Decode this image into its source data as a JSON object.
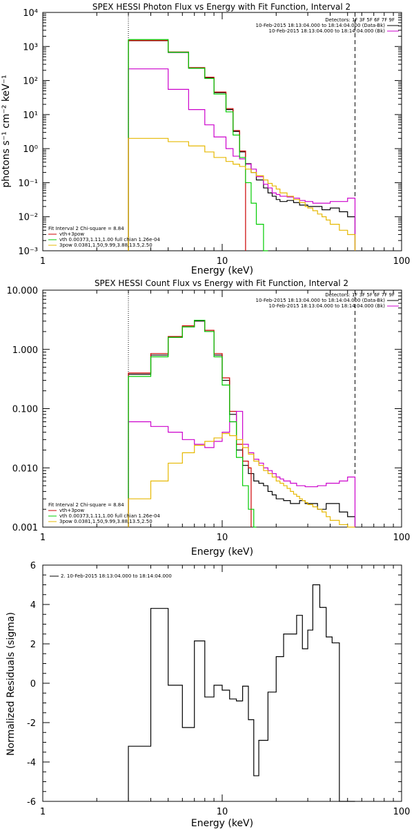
{
  "chart_data": [
    {
      "type": "line",
      "title": "SPEX HESSI Photon Flux vs Energy with Fit Function, Interval 2",
      "xlabel": "Energy (keV)",
      "ylabel": "photons s⁻¹ cm⁻² keV⁻¹",
      "xscale": "log",
      "yscale": "log",
      "xlim": [
        1,
        100
      ],
      "ylim": [
        0.001,
        10000
      ],
      "x_tick_labels": [
        "1",
        "10",
        "100"
      ],
      "y_tick_labels": [
        "10⁻³",
        "10⁻²",
        "10⁻¹",
        "10⁰",
        "10¹",
        "10²",
        "10³",
        "10⁴"
      ],
      "y_tick_values": [
        0.001,
        0.01,
        0.1,
        1,
        10,
        100,
        1000,
        10000
      ],
      "vlines": [
        {
          "x": 3.0,
          "style": "dotted"
        },
        {
          "x": 55.0,
          "style": "dashed"
        }
      ],
      "legend_top": [
        "Detectors: 1F 3F 5F 6F 7F 9F",
        "10-Feb-2015 18:13:04.000 to 18:14:04.000 (Data-Bk)",
        "10-Feb-2015 18:13:04.000 to 18:14:04.000 (Bk)"
      ],
      "legend_bottom": [
        "Fit Interval 2   Chi-square = 8.84",
        "vth+3pow",
        "vth 0.00373,1.11,1.00  full chian 1.26e-04",
        "3pow 0.0381,1.50,9.99,3.88,13.5,2.50"
      ],
      "energy_edges": [
        3.0,
        3.5,
        4.0,
        4.5,
        5.0,
        5.5,
        6.0,
        6.5,
        7.0,
        7.5,
        8.0,
        8.5,
        9.0,
        9.5,
        10.0,
        10.5,
        11.0,
        11.5,
        12.0,
        12.5,
        13.0,
        13.5,
        14.0,
        14.5,
        15.0,
        15.5,
        16.0,
        17.0,
        18.0,
        19.0,
        20.0,
        21.0,
        22.0,
        23.0,
        24.0,
        25.0,
        26.0,
        27.0,
        28.0,
        29.0,
        30.0,
        32.0,
        34.0,
        36.0,
        38.0,
        40.0,
        45.0,
        50.0,
        55.0
      ],
      "series": [
        {
          "color": "#000000",
          "values": [
            1480,
            1480,
            1480,
            1480,
            670,
            670,
            670,
            230,
            230,
            230,
            120,
            120,
            44,
            44,
            44,
            14,
            14,
            3.2,
            3.2,
            0.8,
            0.8,
            0.36,
            0.36,
            0.2,
            0.2,
            0.12,
            0.12,
            0.07,
            0.05,
            0.04,
            0.032,
            0.028,
            0.028,
            0.03,
            0.03,
            0.026,
            0.026,
            0.022,
            0.022,
            0.022,
            0.02,
            0.02,
            0.02,
            0.016,
            0.016,
            0.018,
            0.014,
            0.01,
            0.01
          ]
        },
        {
          "color": "#cc0000",
          "values": [
            1500,
            1500,
            1500,
            1500,
            690,
            690,
            690,
            240,
            240,
            240,
            125,
            125,
            46,
            46,
            46,
            15,
            15,
            3.4,
            3.4,
            0.85,
            0.85
          ]
        },
        {
          "color": "#cc00cc",
          "values": [
            220,
            220,
            220,
            220,
            55,
            55,
            55,
            14,
            14,
            14,
            5.0,
            5.0,
            2.2,
            2.2,
            2.2,
            1.0,
            1.0,
            0.6,
            0.6,
            0.5,
            0.5,
            0.35,
            0.35,
            0.25,
            0.25,
            0.15,
            0.15,
            0.09,
            0.07,
            0.05,
            0.045,
            0.04,
            0.04,
            0.038,
            0.038,
            0.035,
            0.035,
            0.03,
            0.03,
            0.028,
            0.028,
            0.025,
            0.025,
            0.025,
            0.025,
            0.028,
            0.028,
            0.035,
            0.035
          ]
        },
        {
          "color": "#00cc00",
          "values": [
            1600,
            1600,
            1600,
            1600,
            680,
            680,
            680,
            230,
            230,
            230,
            115,
            115,
            40,
            40,
            40,
            12,
            12,
            2.5,
            2.5,
            0.55,
            0.55,
            0.1,
            0.1,
            0.025,
            0.025,
            0.006,
            0.006,
            0.001
          ]
        },
        {
          "color": "#e6b800",
          "values": [
            2.0,
            2.0,
            2.0,
            2.0,
            1.6,
            1.6,
            1.6,
            1.2,
            1.2,
            1.2,
            0.8,
            0.8,
            0.55,
            0.55,
            0.55,
            0.42,
            0.42,
            0.35,
            0.35,
            0.3,
            0.3,
            0.25,
            0.25,
            0.2,
            0.2,
            0.16,
            0.16,
            0.12,
            0.095,
            0.08,
            0.065,
            0.05,
            0.05,
            0.04,
            0.04,
            0.032,
            0.032,
            0.026,
            0.026,
            0.02,
            0.018,
            0.015,
            0.012,
            0.01,
            0.008,
            0.006,
            0.004,
            0.003,
            0.002
          ]
        }
      ]
    },
    {
      "type": "line",
      "title": "SPEX HESSI Count Flux vs Energy with Fit Function, Interval 2",
      "xlabel": "Energy (keV)",
      "ylabel": "",
      "xscale": "log",
      "yscale": "log",
      "xlim": [
        1,
        100
      ],
      "ylim": [
        0.001,
        10
      ],
      "x_tick_labels": [
        "1",
        "10",
        "100"
      ],
      "y_tick_labels": [
        "0.001",
        "0.010",
        "0.100",
        "1.000",
        "10.000"
      ],
      "y_tick_values": [
        0.001,
        0.01,
        0.1,
        1,
        10
      ],
      "vlines": [
        {
          "x": 3.0,
          "style": "dotted"
        },
        {
          "x": 55.0,
          "style": "dashed"
        }
      ],
      "legend_top": [
        "Detectors: 1F 3F 5F 6F 7F 9F",
        "10-Feb-2015 18:13:04.000 to 18:14:04.000 (Data-Bk)",
        "10-Feb-2015 18:13:04.000 to 18:14:04.000 (Bk)"
      ],
      "legend_bottom": [
        "Fit Interval 2   Chi-square = 8.84",
        "vth+3pow",
        "vth 0.00373,1.11,1.00  full chian 1.26e-04",
        "3pow 0.0381,1.50,9.99,3.88,13.5,2.50"
      ],
      "energy_edges": [
        3.0,
        3.5,
        4.0,
        4.5,
        5.0,
        5.5,
        6.0,
        6.5,
        7.0,
        7.5,
        8.0,
        8.5,
        9.0,
        9.5,
        10.0,
        10.5,
        11.0,
        11.5,
        12.0,
        12.5,
        13.0,
        13.5,
        14.0,
        14.5,
        15.0,
        15.5,
        16.0,
        17.0,
        18.0,
        19.0,
        20.0,
        21.0,
        22.0,
        23.0,
        24.0,
        25.0,
        26.0,
        27.0,
        28.0,
        29.0,
        30.0,
        32.0,
        34.0,
        36.0,
        38.0,
        40.0,
        45.0,
        50.0,
        55.0
      ],
      "series": [
        {
          "color": "#000000",
          "values": [
            0.38,
            0.38,
            0.8,
            0.8,
            1.6,
            1.6,
            2.4,
            2.4,
            3.0,
            3.0,
            2.0,
            2.0,
            0.8,
            0.8,
            0.3,
            0.3,
            0.08,
            0.08,
            0.02,
            0.02,
            0.011,
            0.011,
            0.008,
            0.008,
            0.006,
            0.006,
            0.0055,
            0.005,
            0.004,
            0.0035,
            0.003,
            0.003,
            0.0028,
            0.0028,
            0.0025,
            0.0025,
            0.0025,
            0.0028,
            0.0028,
            0.0025,
            0.0025,
            0.0025,
            0.002,
            0.002,
            0.0025,
            0.0025,
            0.0018,
            0.0015,
            0.001
          ]
        },
        {
          "color": "#cc0000",
          "values": [
            0.4,
            0.4,
            0.85,
            0.85,
            1.65,
            1.65,
            2.5,
            2.5,
            3.1,
            3.1,
            2.1,
            2.1,
            0.85,
            0.85,
            0.33,
            0.33,
            0.09,
            0.09,
            0.025,
            0.025,
            0.013,
            0.013,
            0.01
          ]
        },
        {
          "color": "#cc00cc",
          "values": [
            0.06,
            0.06,
            0.05,
            0.05,
            0.04,
            0.04,
            0.03,
            0.03,
            0.025,
            0.025,
            0.022,
            0.022,
            0.028,
            0.028,
            0.04,
            0.04,
            0.06,
            0.06,
            0.09,
            0.09,
            0.025,
            0.025,
            0.018,
            0.018,
            0.014,
            0.014,
            0.012,
            0.01,
            0.009,
            0.008,
            0.007,
            0.0065,
            0.006,
            0.006,
            0.0055,
            0.0055,
            0.005,
            0.005,
            0.005,
            0.0048,
            0.0048,
            0.0048,
            0.005,
            0.005,
            0.0055,
            0.0055,
            0.006,
            0.007,
            0.007
          ]
        },
        {
          "color": "#00cc00",
          "values": [
            0.35,
            0.35,
            0.75,
            0.75,
            1.6,
            1.6,
            2.4,
            2.4,
            3.1,
            3.1,
            2.0,
            2.0,
            0.75,
            0.75,
            0.25,
            0.25,
            0.06,
            0.06,
            0.015,
            0.015,
            0.005,
            0.005,
            0.002,
            0.002,
            0.001
          ]
        },
        {
          "color": "#e6b800",
          "values": [
            0.003,
            0.003,
            0.006,
            0.006,
            0.012,
            0.012,
            0.018,
            0.018,
            0.024,
            0.024,
            0.028,
            0.028,
            0.032,
            0.032,
            0.038,
            0.038,
            0.035,
            0.035,
            0.03,
            0.03,
            0.022,
            0.022,
            0.017,
            0.017,
            0.013,
            0.013,
            0.011,
            0.009,
            0.008,
            0.007,
            0.006,
            0.0055,
            0.005,
            0.0045,
            0.004,
            0.0036,
            0.0033,
            0.003,
            0.0028,
            0.0026,
            0.0024,
            0.0022,
            0.002,
            0.0018,
            0.0015,
            0.0013,
            0.0011,
            0.001,
            0.001
          ]
        }
      ]
    },
    {
      "type": "line",
      "title": "",
      "xlabel": "Energy (keV)",
      "ylabel": "Normalized Residuals (sigma)",
      "xscale": "log",
      "yscale": "linear",
      "xlim": [
        1,
        100
      ],
      "ylim": [
        -6,
        6
      ],
      "x_tick_labels": [
        "1",
        "10",
        "100"
      ],
      "y_tick_labels": [
        "-6",
        "-4",
        "-2",
        "0",
        "2",
        "4",
        "6"
      ],
      "y_tick_values": [
        -6,
        -4,
        -2,
        0,
        2,
        4,
        6
      ],
      "legend_top": [
        "2. 10-Feb-2015 18:13:04.000 to 18:14:04.000"
      ],
      "energy_edges": [
        3.0,
        4.0,
        5.0,
        6.0,
        7.0,
        8.0,
        9.0,
        10.0,
        11.0,
        12.0,
        13.0,
        14.0,
        15.0,
        16.0,
        18.0,
        20.0,
        22.0,
        24.0,
        26.0,
        28.0,
        30.0,
        32.0,
        35.0,
        38.0,
        41.0,
        45.0,
        50.0,
        55.0
      ],
      "series": [
        {
          "color": "#000000",
          "values": [
            -3.2,
            3.8,
            -0.1,
            -2.25,
            2.15,
            -0.7,
            -0.1,
            -0.35,
            -0.8,
            -0.9,
            -0.15,
            -1.85,
            -4.7,
            -2.9,
            -0.45,
            1.35,
            2.5,
            2.5,
            3.45,
            1.75,
            2.7,
            5.0,
            3.85,
            2.35,
            2.05,
            -6.0,
            -6.0
          ]
        }
      ]
    }
  ]
}
